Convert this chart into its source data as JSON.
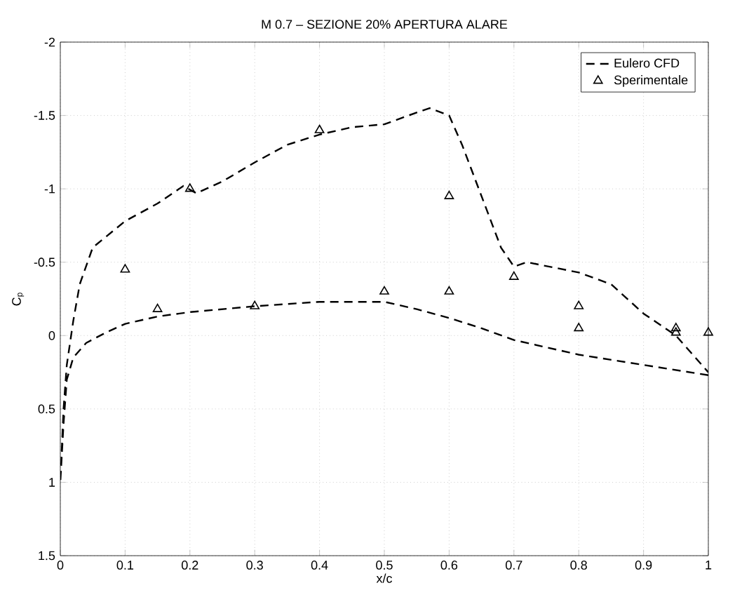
{
  "chart_data": {
    "type": "line",
    "title": "M 0.7 – SEZIONE 20% APERTURA ALARE",
    "xlabel": "x/c",
    "ylabel": "C$_{p}$",
    "xlim": [
      0,
      1
    ],
    "ylim": [
      1.5,
      -2
    ],
    "xticks": [
      0,
      0.1,
      0.2,
      0.3,
      0.4,
      0.5,
      0.6,
      0.7,
      0.8,
      0.9,
      1
    ],
    "yticks": [
      -2,
      -1.5,
      -1,
      -0.5,
      0,
      0.5,
      1,
      1.5
    ],
    "grid": true,
    "legend": "top right",
    "series": [
      {
        "name": "Eulero CFD",
        "color": "#000000",
        "marker": "none",
        "line_style": "dashed",
        "x": [
          1.0,
          0.9,
          0.8,
          0.75,
          0.7,
          0.65,
          0.6,
          0.55,
          0.5,
          0.4,
          0.3,
          0.2,
          0.15,
          0.1,
          0.07,
          0.04,
          0.02,
          0.01,
          0.005,
          0,
          0.005,
          0.01,
          0.02,
          0.03,
          0.05,
          0.1,
          0.15,
          0.19,
          0.21,
          0.25,
          0.3,
          0.35,
          0.4,
          0.45,
          0.5,
          0.55,
          0.57,
          0.6,
          0.62,
          0.65,
          0.68,
          0.7,
          0.72,
          0.8,
          0.85,
          0.9,
          0.95,
          1.0
        ],
        "values": [
          0.27,
          0.2,
          0.13,
          0.08,
          0.03,
          -0.05,
          -0.12,
          -0.18,
          -0.23,
          -0.23,
          -0.2,
          -0.16,
          -0.13,
          -0.08,
          -0.02,
          0.05,
          0.15,
          0.3,
          0.6,
          1,
          0.5,
          0.2,
          -0.1,
          -0.35,
          -0.6,
          -0.78,
          -0.9,
          -1.02,
          -0.97,
          -1.05,
          -1.18,
          -1.3,
          -1.37,
          -1.42,
          -1.44,
          -1.52,
          -1.55,
          -1.5,
          -1.3,
          -0.95,
          -0.6,
          -0.47,
          -0.5,
          -0.43,
          -0.35,
          -0.15,
          0.0,
          0.25
        ]
      },
      {
        "name": "Sperimentale",
        "type": "scatter",
        "color": "#000000",
        "marker": "triangle",
        "x": [
          0.1,
          0.15,
          0.2,
          0.3,
          0.4,
          0.5,
          0.6,
          0.6,
          0.7,
          0.8,
          0.8,
          0.95,
          0.95,
          1.0
        ],
        "values": [
          -0.45,
          -0.18,
          -1.0,
          -0.2,
          -1.4,
          -0.3,
          -0.95,
          -0.3,
          -0.4,
          -0.2,
          -0.05,
          -0.05,
          -0.02,
          -0.02
        ]
      }
    ]
  }
}
